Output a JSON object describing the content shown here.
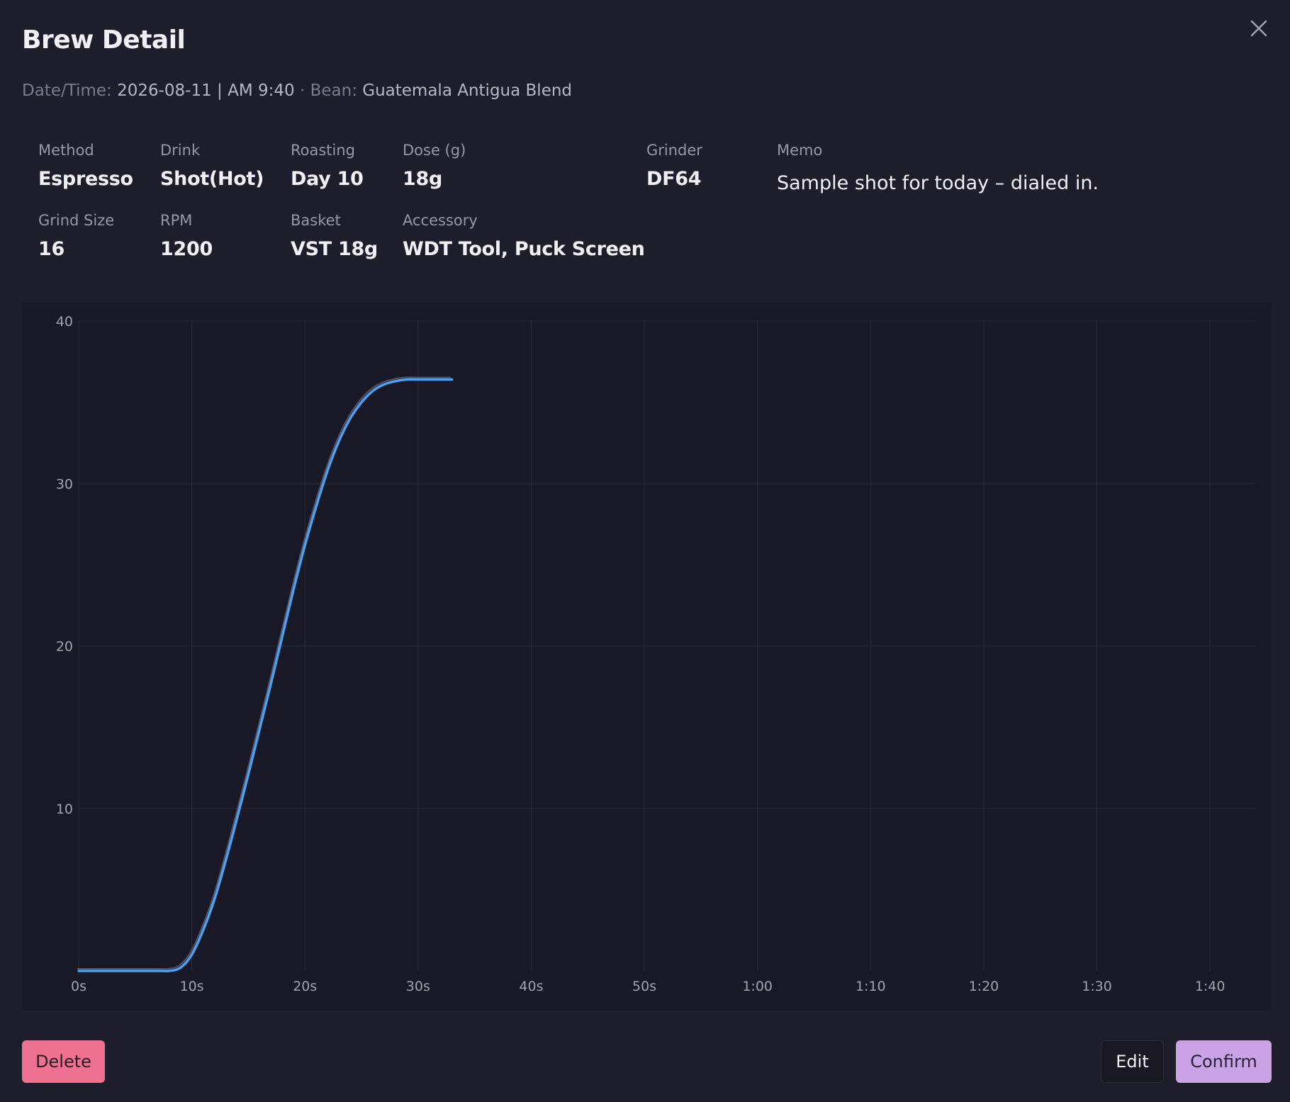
{
  "modal": {
    "title": "Brew Detail",
    "close_icon": "close-icon"
  },
  "meta": {
    "date_label": "Date/Time:",
    "date_value": "2026-08-11 | AM 9:40",
    "separator": "·",
    "bean_label": "Bean:",
    "bean_value": "Guatemala Antigua Blend"
  },
  "fields": {
    "method": {
      "label": "Method",
      "value": "Espresso"
    },
    "drink": {
      "label": "Drink",
      "value": "Shot(Hot)"
    },
    "roasting": {
      "label": "Roasting",
      "value": "Day 10"
    },
    "dose": {
      "label": "Dose (g)",
      "value": "18g"
    },
    "grinder": {
      "label": "Grinder",
      "value": "DF64"
    },
    "memo": {
      "label": "Memo",
      "value": "Sample shot for today – dialed in."
    },
    "grind_size": {
      "label": "Grind Size",
      "value": "16"
    },
    "rpm": {
      "label": "RPM",
      "value": "1200"
    },
    "basket": {
      "label": "Basket",
      "value": "VST 18g"
    },
    "accessory": {
      "label": "Accessory",
      "value": "WDT Tool, Puck Screen"
    }
  },
  "chart_data": {
    "type": "line",
    "title": "",
    "xlabel": "",
    "ylabel": "",
    "xlim": [
      0,
      104
    ],
    "ylim": [
      0,
      40
    ],
    "x_ticks": [
      0,
      10,
      20,
      30,
      40,
      50,
      60,
      70,
      80,
      90,
      100
    ],
    "x_tick_labels": [
      "0s",
      "10s",
      "20s",
      "30s",
      "40s",
      "50s",
      "1:00",
      "1:10",
      "1:20",
      "1:30",
      "1:40"
    ],
    "y_ticks": [
      10,
      20,
      30,
      40
    ],
    "y_tick_labels": [
      "10",
      "20",
      "30",
      "40"
    ],
    "grid": true,
    "series": [
      {
        "color": "#4aa3f2",
        "x": [
          0,
          7,
          8,
          9,
          10,
          11,
          12,
          13,
          14,
          15,
          16,
          17,
          18,
          19,
          20,
          21,
          22,
          23,
          24,
          25,
          26,
          27,
          28,
          29,
          30,
          31,
          33
        ],
        "y": [
          0,
          0,
          0,
          0.2,
          1,
          2.5,
          4.4,
          6.8,
          9.4,
          12.1,
          14.9,
          17.7,
          20.6,
          23.5,
          26.2,
          28.6,
          30.8,
          32.6,
          34,
          35,
          35.7,
          36.1,
          36.3,
          36.4,
          36.4,
          36.4,
          36.4
        ]
      }
    ]
  },
  "actions": {
    "delete": "Delete",
    "edit": "Edit",
    "confirm": "Confirm"
  },
  "colors": {
    "background": "#1e1d2b",
    "chart_background": "#181826",
    "accent_line": "#4aa3f2",
    "delete_button": "#ee7191",
    "confirm_button": "#c9a3e6"
  }
}
